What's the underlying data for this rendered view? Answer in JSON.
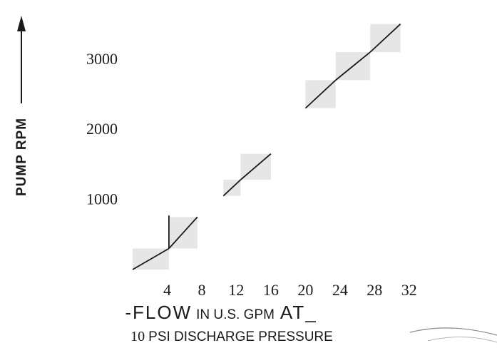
{
  "chart_data": {
    "type": "line",
    "title": "",
    "ylabel": "PUMP RPM",
    "xlabel_line1": {
      "dash": "-",
      "flow": "FLOW",
      "in": "IN U.S. GPM",
      "at": "AT",
      "trail": "_"
    },
    "xlabel_line2": {
      "num": "10",
      "rest": "PSI DISCHARGE PRESSURE"
    },
    "x_ticks": [
      "4",
      "8",
      "12",
      "16",
      "20",
      "24",
      "28",
      "32"
    ],
    "y_ticks": [
      "1000",
      "2000",
      "3000"
    ],
    "xlim": [
      0,
      34
    ],
    "ylim": [
      0,
      3700
    ],
    "grid": false,
    "legend": "none",
    "line_color": "#1a1a1a",
    "patch_color": "#e6e6e6",
    "segments": [
      {
        "x": [
          0,
          4.2
        ],
        "y": [
          0,
          300
        ]
      },
      {
        "x": [
          4.2,
          7.5
        ],
        "y": [
          300,
          750
        ]
      },
      {
        "x": [
          10.5,
          12.5
        ],
        "y": [
          1050,
          1280
        ]
      },
      {
        "x": [
          12.5,
          16
        ],
        "y": [
          1280,
          1650
        ]
      },
      {
        "x": [
          20,
          23.5
        ],
        "y": [
          2300,
          2700
        ]
      },
      {
        "x": [
          23.5,
          27.5
        ],
        "y": [
          2700,
          3100
        ]
      },
      {
        "x": [
          27.5,
          31
        ],
        "y": [
          3100,
          3500
        ]
      }
    ],
    "connector": {
      "x": [
        4.2,
        4.2
      ],
      "y": [
        300,
        770
      ]
    }
  }
}
